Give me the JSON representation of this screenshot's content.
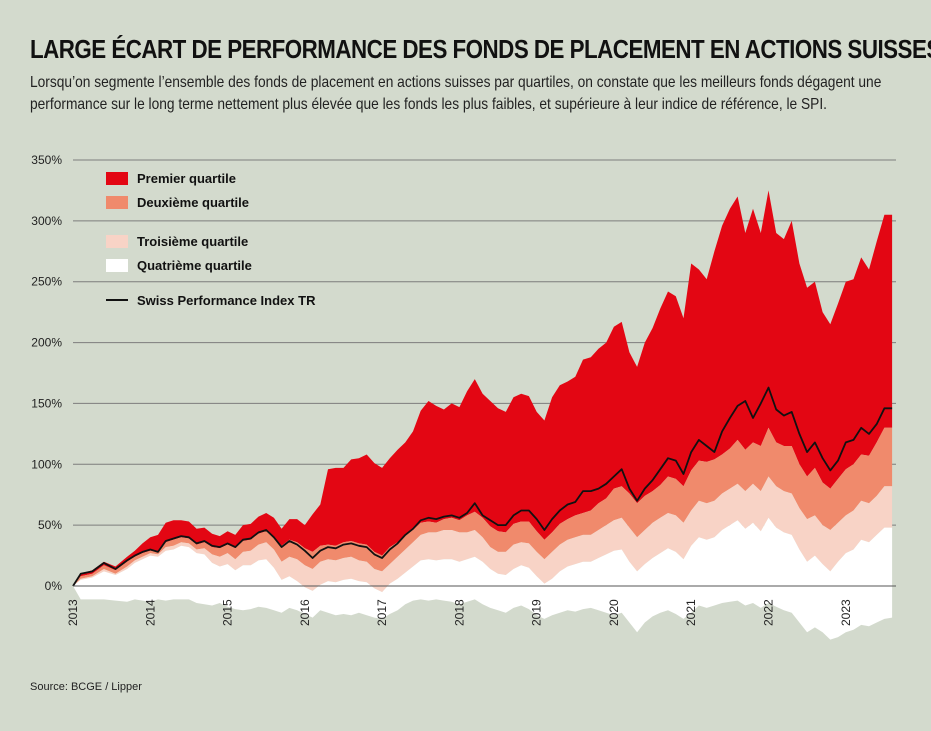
{
  "title": "LARGE ÉCART DE PERFORMANCE DES FONDS DE PLACEMENT EN ACTIONS SUISSES",
  "subtitle": "Lorsqu’on segmente l’ensemble des fonds de placement en actions suisses par quartiles, on constate que les meilleurs fonds dégagent une performance sur le long terme nettement plus élevée que les fonds les plus faibles, et supérieure à leur indice de référence, le SPI.",
  "source": "Source: BCGE / Lipper",
  "colors": {
    "background": "#d3dacd",
    "q1": "#e30613",
    "q2": "#f08a6c",
    "q3": "#f8d3c6",
    "q4": "#ffffff",
    "spi": "#111111",
    "grid": "#7d7d7d"
  },
  "chart_data": {
    "type": "area",
    "title": "LARGE ÉCART DE PERFORMANCE DES FONDS DE PLACEMENT EN ACTIONS SUISSES",
    "xlabel": "",
    "ylabel": "",
    "ylim": [
      -50,
      350
    ],
    "yticks": [
      0,
      50,
      100,
      150,
      200,
      250,
      300,
      350
    ],
    "ytick_labels": [
      "0%",
      "50%",
      "100%",
      "150%",
      "200%",
      "250%",
      "300%",
      "350%"
    ],
    "xlim": [
      2013.0,
      2023.65
    ],
    "xticks": [
      2013,
      2014,
      2015,
      2016,
      2017,
      2018,
      2019,
      2020,
      2021,
      2022,
      2023
    ],
    "xtick_labels": [
      "2013",
      "2014",
      "2015",
      "2016",
      "2017",
      "2018",
      "2019",
      "2020",
      "2021",
      "2022",
      "2023"
    ],
    "grid": true,
    "legend_position": "top-left",
    "x": [
      2013.0,
      2013.1,
      2013.25,
      2013.4,
      2013.55,
      2013.7,
      2013.8,
      2013.9,
      2014.0,
      2014.1,
      2014.2,
      2014.3,
      2014.4,
      2014.5,
      2014.6,
      2014.7,
      2014.8,
      2014.9,
      2015.0,
      2015.1,
      2015.2,
      2015.3,
      2015.4,
      2015.5,
      2015.6,
      2015.7,
      2015.8,
      2015.9,
      2016.0,
      2016.1,
      2016.2,
      2016.3,
      2016.4,
      2016.5,
      2016.6,
      2016.7,
      2016.8,
      2016.9,
      2017.0,
      2017.1,
      2017.2,
      2017.3,
      2017.4,
      2017.5,
      2017.6,
      2017.7,
      2017.8,
      2017.9,
      2018.0,
      2018.1,
      2018.2,
      2018.3,
      2018.4,
      2018.5,
      2018.6,
      2018.7,
      2018.8,
      2018.9,
      2019.0,
      2019.1,
      2019.2,
      2019.3,
      2019.4,
      2019.5,
      2019.6,
      2019.7,
      2019.8,
      2019.9,
      2020.0,
      2020.1,
      2020.2,
      2020.3,
      2020.4,
      2020.5,
      2020.6,
      2020.7,
      2020.8,
      2020.9,
      2021.0,
      2021.1,
      2021.2,
      2021.3,
      2021.4,
      2021.5,
      2021.6,
      2021.7,
      2021.8,
      2021.9,
      2022.0,
      2022.1,
      2022.2,
      2022.3,
      2022.4,
      2022.5,
      2022.6,
      2022.7,
      2022.8,
      2022.9,
      2023.0,
      2023.1,
      2023.2,
      2023.3,
      2023.4,
      2023.5,
      2023.6
    ],
    "series": [
      {
        "name": "Premier quartile",
        "color": "#e30613",
        "values": [
          0,
          10,
          13,
          20,
          16,
          24,
          29,
          35,
          40,
          42,
          52,
          54,
          54,
          53,
          47,
          48,
          43,
          41,
          45,
          42,
          50,
          51,
          57,
          60,
          56,
          47,
          55,
          55,
          50,
          59,
          67,
          96,
          97,
          97,
          104,
          105,
          108,
          101,
          97,
          105,
          112,
          118,
          127,
          144,
          152,
          148,
          145,
          150,
          147,
          160,
          170,
          158,
          152,
          146,
          143,
          155,
          158,
          156,
          143,
          136,
          155,
          165,
          168,
          172,
          186,
          188,
          195,
          200,
          213,
          217,
          192,
          180,
          200,
          212,
          228,
          242,
          238,
          220,
          265,
          260,
          252,
          275,
          296,
          310,
          320,
          290,
          310,
          290,
          325,
          290,
          285,
          300,
          265,
          245,
          250,
          225,
          215,
          232,
          250,
          252,
          270,
          260,
          283,
          305,
          305
        ]
      },
      {
        "name": "Deuxième quartile",
        "color": "#f08a6c",
        "values": [
          0,
          8,
          10,
          17,
          13,
          20,
          24,
          27,
          29,
          28,
          36,
          38,
          40,
          39,
          34,
          36,
          32,
          31,
          34,
          31,
          37,
          38,
          43,
          45,
          40,
          33,
          38,
          36,
          31,
          28,
          33,
          34,
          33,
          36,
          37,
          35,
          34,
          28,
          25,
          32,
          36,
          42,
          46,
          52,
          53,
          52,
          55,
          56,
          54,
          58,
          61,
          56,
          49,
          45,
          44,
          51,
          53,
          53,
          45,
          38,
          44,
          51,
          55,
          58,
          60,
          62,
          68,
          72,
          80,
          82,
          76,
          68,
          74,
          78,
          83,
          90,
          88,
          82,
          95,
          103,
          102,
          104,
          108,
          113,
          120,
          112,
          118,
          115,
          130,
          118,
          115,
          115,
          100,
          90,
          97,
          85,
          80,
          88,
          96,
          100,
          108,
          107,
          118,
          130,
          130
        ]
      },
      {
        "name": "Troisième quartile",
        "color": "#f8d3c6",
        "values": [
          0,
          6,
          8,
          14,
          10,
          16,
          21,
          24,
          27,
          26,
          32,
          33,
          36,
          35,
          30,
          31,
          26,
          24,
          27,
          22,
          28,
          29,
          34,
          36,
          30,
          20,
          24,
          22,
          17,
          14,
          20,
          22,
          21,
          23,
          24,
          21,
          20,
          14,
          12,
          18,
          24,
          30,
          36,
          42,
          44,
          44,
          46,
          46,
          44,
          44,
          46,
          40,
          32,
          28,
          28,
          34,
          36,
          35,
          28,
          22,
          28,
          34,
          38,
          40,
          42,
          42,
          46,
          50,
          54,
          56,
          48,
          40,
          46,
          52,
          56,
          60,
          58,
          52,
          62,
          70,
          68,
          70,
          76,
          80,
          84,
          78,
          84,
          78,
          90,
          82,
          78,
          76,
          64,
          55,
          58,
          50,
          46,
          52,
          58,
          62,
          70,
          68,
          74,
          82,
          82
        ]
      },
      {
        "name": "Quatrième quartile",
        "color": "#ffffff",
        "values": [
          0,
          5,
          7,
          12,
          9,
          14,
          19,
          22,
          25,
          24,
          29,
          30,
          33,
          32,
          27,
          26,
          19,
          16,
          18,
          13,
          17,
          17,
          21,
          22,
          15,
          5,
          8,
          4,
          -1,
          -4,
          1,
          4,
          3,
          5,
          6,
          4,
          3,
          -2,
          -5,
          2,
          6,
          11,
          16,
          21,
          22,
          21,
          22,
          22,
          20,
          22,
          24,
          20,
          14,
          10,
          9,
          14,
          17,
          15,
          8,
          2,
          6,
          12,
          16,
          18,
          20,
          20,
          23,
          26,
          29,
          30,
          20,
          12,
          18,
          23,
          27,
          31,
          28,
          22,
          33,
          40,
          38,
          40,
          46,
          50,
          54,
          47,
          52,
          45,
          56,
          48,
          44,
          42,
          30,
          20,
          25,
          18,
          12,
          20,
          27,
          30,
          38,
          36,
          42,
          48,
          48
        ]
      },
      {
        "name": "Quatrième quartile (borne inférieure)",
        "color": "#ffffff",
        "values": [
          0,
          -11,
          -11,
          -11,
          -12,
          -13,
          -11,
          -12,
          -13,
          -11,
          -12,
          -11,
          -11,
          -11,
          -14,
          -15,
          -16,
          -14,
          -17,
          -19,
          -20,
          -19,
          -17,
          -18,
          -20,
          -22,
          -18,
          -20,
          -23,
          -26,
          -20,
          -22,
          -24,
          -23,
          -24,
          -22,
          -24,
          -26,
          -27,
          -23,
          -20,
          -15,
          -12,
          -11,
          -12,
          -11,
          -12,
          -13,
          -15,
          -13,
          -11,
          -15,
          -18,
          -20,
          -22,
          -18,
          -16,
          -19,
          -24,
          -27,
          -24,
          -22,
          -20,
          -21,
          -19,
          -18,
          -20,
          -22,
          -24,
          -22,
          -30,
          -38,
          -30,
          -25,
          -22,
          -20,
          -23,
          -27,
          -22,
          -16,
          -18,
          -16,
          -14,
          -13,
          -12,
          -16,
          -14,
          -18,
          -14,
          -17,
          -20,
          -22,
          -30,
          -38,
          -34,
          -38,
          -44,
          -42,
          -38,
          -36,
          -32,
          -33,
          -30,
          -27,
          -26
        ]
      },
      {
        "name": "Swiss Performance Index TR",
        "color": "#111111",
        "values": [
          0,
          10,
          12,
          19,
          14,
          21,
          25,
          28,
          30,
          28,
          37,
          39,
          41,
          40,
          35,
          37,
          33,
          32,
          35,
          32,
          38,
          39,
          44,
          46,
          40,
          32,
          37,
          34,
          29,
          23,
          29,
          32,
          31,
          34,
          35,
          33,
          32,
          26,
          23,
          30,
          35,
          42,
          47,
          54,
          56,
          55,
          57,
          58,
          56,
          60,
          68,
          58,
          54,
          50,
          50,
          58,
          62,
          62,
          55,
          46,
          55,
          62,
          67,
          69,
          78,
          78,
          80,
          84,
          90,
          96,
          80,
          70,
          80,
          87,
          96,
          105,
          103,
          92,
          110,
          120,
          115,
          110,
          127,
          138,
          148,
          152,
          138,
          150,
          163,
          145,
          140,
          143,
          125,
          110,
          118,
          105,
          95,
          103,
          118,
          120,
          130,
          125,
          133,
          146,
          146
        ]
      }
    ],
    "legend": [
      {
        "label": "Premier quartile",
        "type": "area",
        "color": "#e30613"
      },
      {
        "label": "Deuxième quartile",
        "type": "area",
        "color": "#f08a6c"
      },
      {
        "label": "Troisième quartile",
        "type": "area",
        "color": "#f8d3c6"
      },
      {
        "label": "Quatrième quartile",
        "type": "area",
        "color": "#ffffff"
      },
      {
        "label": "Swiss Performance Index TR",
        "type": "line",
        "color": "#111111"
      }
    ]
  }
}
